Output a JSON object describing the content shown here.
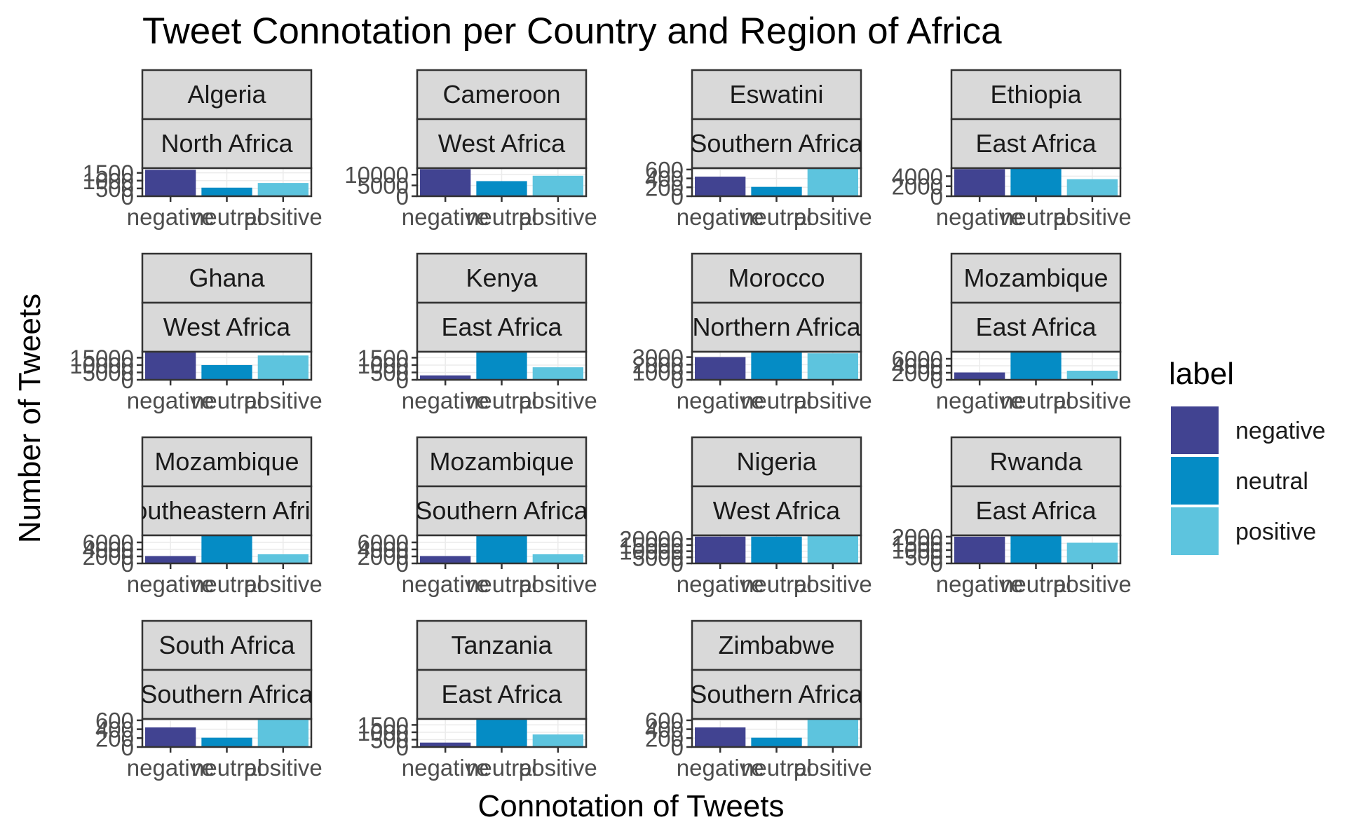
{
  "chart_data": {
    "type": "bar",
    "title": "Tweet Connotation per Country and Region of Africa",
    "xlabel": "Connotation of Tweets",
    "ylabel": "Number of Tweets",
    "categories": [
      "negative",
      "neutral",
      "positive"
    ],
    "grid": true,
    "legend": {
      "title": "label",
      "position": "right",
      "entries": [
        "negative",
        "neutral",
        "positive"
      ]
    },
    "colors": {
      "negative": "#414391",
      "neutral": "#058cc5",
      "positive": "#5dc4de"
    },
    "panels": [
      {
        "country": "Algeria",
        "region": "North Africa",
        "ylim": [
          0,
          1800
        ],
        "ticks": [
          "0",
          "500",
          "1000",
          "1500"
        ],
        "values": [
          1700,
          550,
          850
        ]
      },
      {
        "country": "Cameroon",
        "region": "West Africa",
        "ylim": [
          0,
          13000
        ],
        "ticks": [
          "0",
          "5000",
          "10000"
        ],
        "values": [
          12500,
          7000,
          9500
        ]
      },
      {
        "country": "Eswatini",
        "region": "Southern Africa",
        "ylim": [
          0,
          630
        ],
        "ticks": [
          "0",
          "200",
          "400",
          "600"
        ],
        "values": [
          440,
          210,
          620
        ]
      },
      {
        "country": "Ethiopia",
        "region": "East Africa",
        "ylim": [
          0,
          5600
        ],
        "ticks": [
          "0",
          "2000",
          "4000"
        ],
        "values": [
          5400,
          5500,
          3400
        ]
      },
      {
        "country": "Ghana",
        "region": "West Africa",
        "ylim": [
          0,
          19000
        ],
        "ticks": [
          "0",
          "5000",
          "10000",
          "15000"
        ],
        "values": [
          18500,
          10000,
          16500
        ]
      },
      {
        "country": "Kenya",
        "region": "East Africa",
        "ylim": [
          0,
          1900
        ],
        "ticks": [
          "0",
          "500",
          "1000",
          "1500"
        ],
        "values": [
          300,
          1850,
          850
        ]
      },
      {
        "country": "Morocco",
        "region": "Northern Africa",
        "ylim": [
          0,
          3700
        ],
        "ticks": [
          "0",
          "1000",
          "2000",
          "3000"
        ],
        "values": [
          3000,
          3600,
          3500
        ]
      },
      {
        "country": "Mozambique",
        "region": "East Africa",
        "ylim": [
          0,
          8000
        ],
        "ticks": [
          "0",
          "2000",
          "4000",
          "6000"
        ],
        "values": [
          2100,
          7900,
          2600
        ]
      },
      {
        "country": "Mozambique",
        "region": "Southeastern Africa",
        "ylim": [
          0,
          8000
        ],
        "ticks": [
          "0",
          "2000",
          "4000",
          "6000"
        ],
        "values": [
          2100,
          7900,
          2600
        ]
      },
      {
        "country": "Mozambique",
        "region": "Southern Africa",
        "ylim": [
          0,
          8000
        ],
        "ticks": [
          "0",
          "2000",
          "4000",
          "6000"
        ],
        "values": [
          2100,
          7900,
          2600
        ]
      },
      {
        "country": "Nigeria",
        "region": "West Africa",
        "ylim": [
          0,
          23000
        ],
        "ticks": [
          "0",
          "5000",
          "10000",
          "15000",
          "20000"
        ],
        "values": [
          22000,
          22000,
          22500
        ]
      },
      {
        "country": "Rwanda",
        "region": "East Africa",
        "ylim": [
          0,
          2100
        ],
        "ticks": [
          "0",
          "500",
          "1000",
          "1500",
          "2000"
        ],
        "values": [
          2000,
          2050,
          1550
        ]
      },
      {
        "country": "South Africa",
        "region": "Southern Africa",
        "ylim": [
          0,
          630
        ],
        "ticks": [
          "0",
          "200",
          "400",
          "600"
        ],
        "values": [
          440,
          210,
          620
        ]
      },
      {
        "country": "Tanzania",
        "region": "East Africa",
        "ylim": [
          0,
          1900
        ],
        "ticks": [
          "0",
          "500",
          "1000",
          "1500"
        ],
        "values": [
          300,
          1850,
          850
        ]
      },
      {
        "country": "Zimbabwe",
        "region": "Southern Africa",
        "ylim": [
          0,
          630
        ],
        "ticks": [
          "0",
          "200",
          "400",
          "600"
        ],
        "values": [
          440,
          210,
          620
        ]
      }
    ]
  }
}
